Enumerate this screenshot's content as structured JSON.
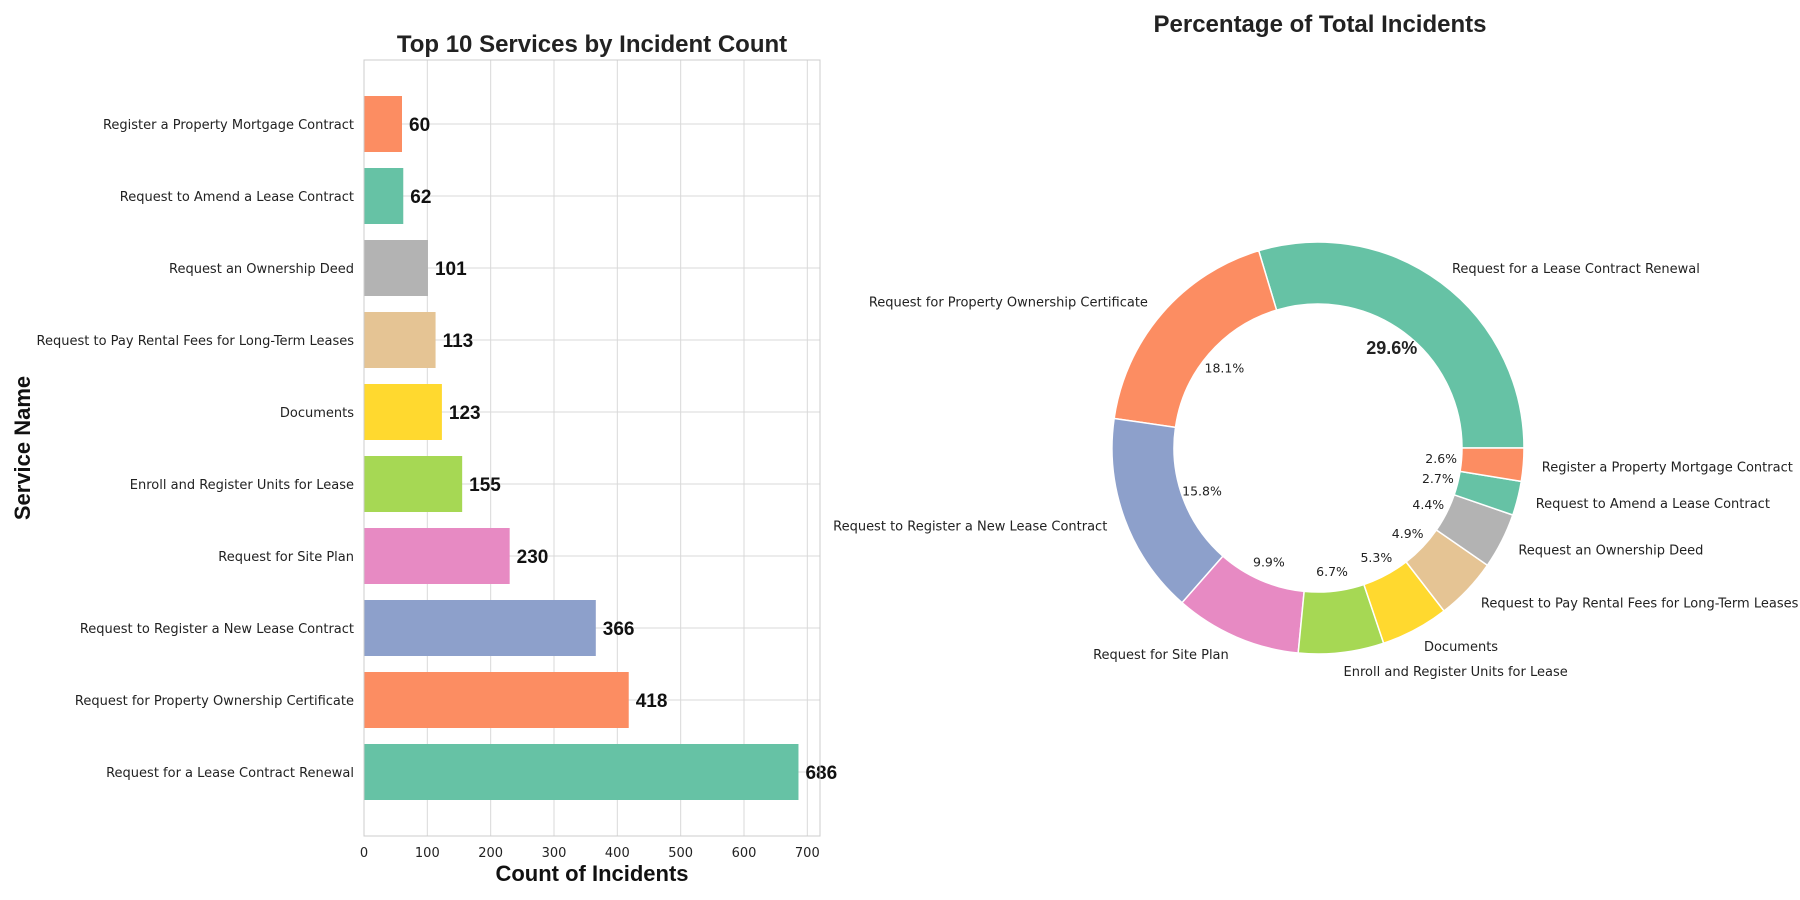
{
  "chart_data": [
    {
      "type": "bar",
      "orientation": "horizontal",
      "title": "Top 10 Services by Incident Count",
      "xlabel": "Count of Incidents",
      "ylabel": "Service Name",
      "xlim": [
        0,
        720
      ],
      "xticks": [
        0,
        100,
        200,
        300,
        400,
        500,
        600,
        700
      ],
      "grid": true,
      "categories": [
        "Request for a Lease Contract Renewal",
        "Request for Property Ownership Certificate",
        "Request to Register a New Lease Contract",
        "Request for Site Plan",
        "Enroll and Register Units for Lease",
        "Documents",
        "Request to Pay Rental Fees for Long-Term Leases",
        "Request an Ownership Deed",
        "Request to Amend a Lease Contract",
        "Register a Property Mortgage Contract"
      ],
      "values": [
        686,
        418,
        366,
        230,
        155,
        123,
        113,
        101,
        62,
        60
      ],
      "colors": [
        "#66c2a5",
        "#fc8d62",
        "#8da0cb",
        "#e78ac3",
        "#a6d854",
        "#ffd92f",
        "#e5c494",
        "#b3b3b3",
        "#66c2a5",
        "#fc8d62"
      ]
    },
    {
      "type": "pie",
      "variant": "donut",
      "title": "Percentage of Total Incidents",
      "categories": [
        "Request for a Lease Contract Renewal",
        "Request for Property Ownership Certificate",
        "Request to Register a New Lease Contract",
        "Request for Site Plan",
        "Enroll and Register Units for Lease",
        "Documents",
        "Request to Pay Rental Fees for Long-Term Leases",
        "Request an Ownership Deed",
        "Request to Amend a Lease Contract",
        "Register a Property Mortgage Contract"
      ],
      "values": [
        686,
        418,
        366,
        230,
        155,
        123,
        113,
        101,
        62,
        60
      ],
      "percent_labels": [
        "29.6%",
        "18.1%",
        "15.8%",
        "9.9%",
        "6.7%",
        "5.3%",
        "4.9%",
        "4.4%",
        "2.7%",
        "2.6%"
      ],
      "colors": [
        "#66c2a5",
        "#fc8d62",
        "#8da0cb",
        "#e78ac3",
        "#a6d854",
        "#ffd92f",
        "#e5c494",
        "#b3b3b3",
        "#66c2a5",
        "#fc8d62"
      ]
    }
  ]
}
